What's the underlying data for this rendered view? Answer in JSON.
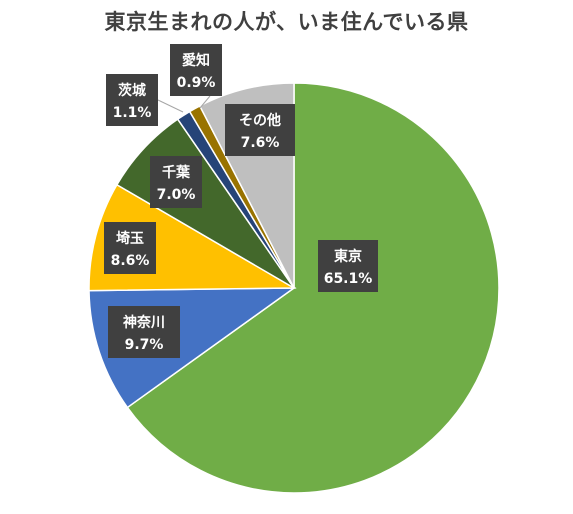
{
  "chart_data": {
    "type": "pie",
    "title": "東京生まれの人が、いま住んでいる県",
    "slices": [
      {
        "label": "東京",
        "value": 65.1,
        "display": "65.1%",
        "color": "#70ad47"
      },
      {
        "label": "神奈川",
        "value": 9.7,
        "display": "9.7%",
        "color": "#4472c4"
      },
      {
        "label": "埼玉",
        "value": 8.6,
        "display": "8.6%",
        "color": "#ffc000"
      },
      {
        "label": "千葉",
        "value": 7.0,
        "display": "7.0%",
        "color": "#43682b"
      },
      {
        "label": "茨城",
        "value": 1.1,
        "display": "1.1%",
        "color": "#264478"
      },
      {
        "label": "愛知",
        "value": 0.9,
        "display": "0.9%",
        "color": "#997300"
      },
      {
        "label": "その他",
        "value": 7.6,
        "display": "7.6%",
        "color": "#bfbfbf"
      }
    ],
    "start_angle_deg": 0,
    "direction": "clockwise",
    "legend": "none"
  }
}
